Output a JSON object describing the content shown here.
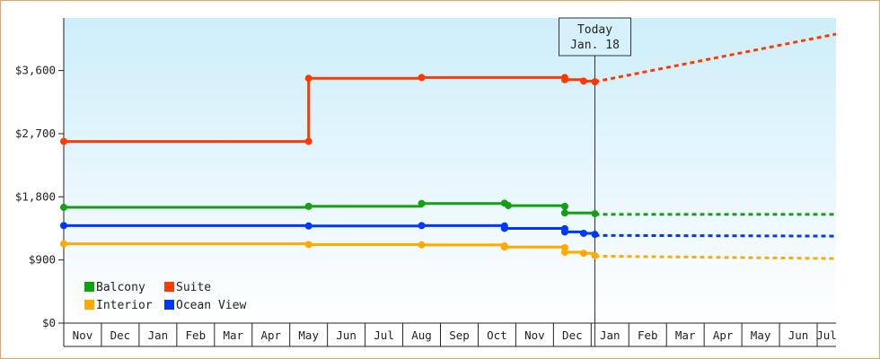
{
  "chart_data": {
    "type": "line",
    "title": "",
    "xlabel": "",
    "ylabel": "",
    "ylim": [
      0,
      4350
    ],
    "y_ticks": [
      {
        "value": 0,
        "label": "$0"
      },
      {
        "value": 900,
        "label": "$900"
      },
      {
        "value": 1800,
        "label": "$1,800"
      },
      {
        "value": 2700,
        "label": "$2,700"
      },
      {
        "value": 3600,
        "label": "$3,600"
      }
    ],
    "x_months": [
      "Nov",
      "Dec",
      "Jan",
      "Feb",
      "Mar",
      "Apr",
      "May",
      "Jun",
      "Jul",
      "Aug",
      "Sep",
      "Oct",
      "Nov",
      "Dec",
      "Jan",
      "Feb",
      "Mar",
      "Apr",
      "May",
      "Jun",
      "Jul"
    ],
    "x_range_months": [
      0,
      20.5
    ],
    "today": {
      "line1": "Today",
      "line2": "Jan. 18",
      "x": 14.1
    },
    "grid": false,
    "legend_position": "bottom-left",
    "series": [
      {
        "name": "Balcony",
        "color": "#13a013",
        "points": [
          [
            0,
            1650
          ],
          [
            6.5,
            1665
          ],
          [
            9.5,
            1705
          ],
          [
            11.7,
            1710
          ],
          [
            11.8,
            1675
          ],
          [
            13.3,
            1665
          ],
          [
            13.3,
            1570
          ],
          [
            14.1,
            1560
          ]
        ],
        "points_shown": [
          [
            0,
            1650
          ],
          [
            6.5,
            1665
          ],
          [
            9.5,
            1705
          ],
          [
            11.7,
            1710
          ],
          [
            11.8,
            1675
          ],
          [
            13.3,
            1665
          ],
          [
            13.3,
            1570
          ],
          [
            14.1,
            1560
          ]
        ],
        "forecast": [
          [
            14.1,
            1550
          ],
          [
            20.5,
            1550
          ]
        ]
      },
      {
        "name": "Suite",
        "color": "#ff3a00",
        "points": [
          [
            0,
            2590
          ],
          [
            6.5,
            2590
          ],
          [
            6.5,
            3490
          ],
          [
            9.5,
            3500
          ],
          [
            13.3,
            3500
          ],
          [
            13.3,
            3470
          ],
          [
            13.8,
            3450
          ],
          [
            14.1,
            3440
          ]
        ],
        "points_shown": [
          [
            0,
            2590
          ],
          [
            6.5,
            2590
          ],
          [
            6.5,
            3490
          ],
          [
            9.5,
            3500
          ],
          [
            13.3,
            3500
          ],
          [
            13.3,
            3470
          ],
          [
            13.8,
            3450
          ],
          [
            14.1,
            3440
          ]
        ],
        "forecast": [
          [
            14.1,
            3440
          ],
          [
            20.5,
            4120
          ]
        ]
      },
      {
        "name": "Interior",
        "color": "#ffaa00",
        "points": [
          [
            0,
            1130
          ],
          [
            6.5,
            1120
          ],
          [
            9.5,
            1115
          ],
          [
            11.7,
            1100
          ],
          [
            11.7,
            1085
          ],
          [
            13.3,
            1075
          ],
          [
            13.3,
            1010
          ],
          [
            13.8,
            995
          ],
          [
            14.1,
            960
          ]
        ],
        "points_shown": [
          [
            0,
            1130
          ],
          [
            6.5,
            1120
          ],
          [
            9.5,
            1115
          ],
          [
            11.7,
            1100
          ],
          [
            11.7,
            1085
          ],
          [
            13.3,
            1075
          ],
          [
            13.3,
            1010
          ],
          [
            13.8,
            995
          ],
          [
            14.1,
            960
          ]
        ],
        "forecast": [
          [
            14.1,
            955
          ],
          [
            20.5,
            920
          ]
        ]
      },
      {
        "name": "Ocean View",
        "color": "#0037ff",
        "points": [
          [
            0,
            1390
          ],
          [
            6.5,
            1385
          ],
          [
            9.5,
            1390
          ],
          [
            11.7,
            1385
          ],
          [
            11.7,
            1350
          ],
          [
            13.3,
            1345
          ],
          [
            13.3,
            1300
          ],
          [
            13.8,
            1280
          ],
          [
            14.1,
            1265
          ]
        ],
        "points_shown": [
          [
            0,
            1390
          ],
          [
            6.5,
            1385
          ],
          [
            9.5,
            1390
          ],
          [
            11.7,
            1385
          ],
          [
            11.7,
            1350
          ],
          [
            13.3,
            1345
          ],
          [
            13.3,
            1300
          ],
          [
            13.8,
            1280
          ],
          [
            14.1,
            1265
          ]
        ],
        "forecast": [
          [
            14.1,
            1250
          ],
          [
            20.5,
            1240
          ]
        ]
      }
    ],
    "legend": [
      {
        "name": "Balcony",
        "color": "#13a013"
      },
      {
        "name": "Suite",
        "color": "#ff3a00"
      },
      {
        "name": "Interior",
        "color": "#ffaa00"
      },
      {
        "name": "Ocean View",
        "color": "#0037ff"
      }
    ]
  }
}
